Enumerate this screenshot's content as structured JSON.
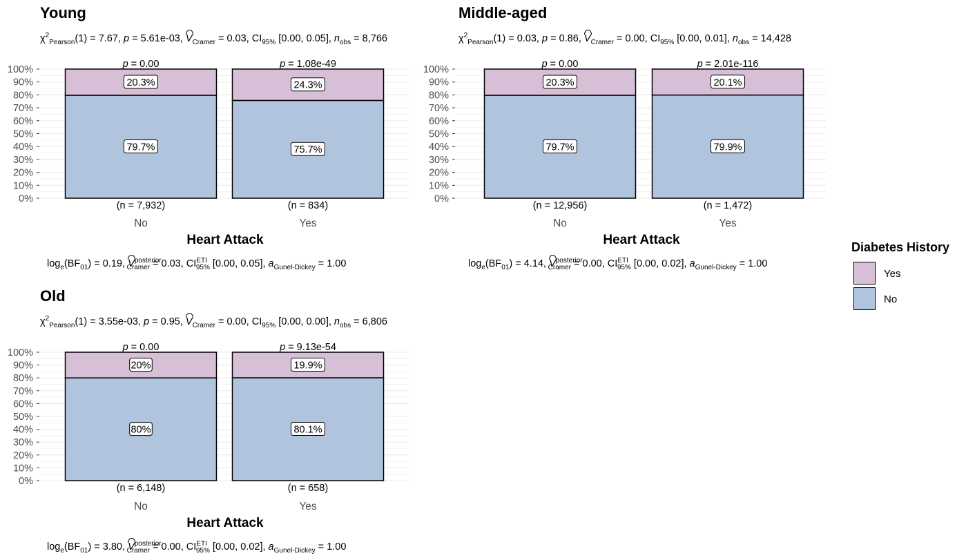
{
  "colors": {
    "yes": "#D8BFD8",
    "no": "#B0C4DE",
    "grid": "#EBEBEB",
    "axis_text": "#4D4D4D"
  },
  "legend": {
    "title": "Diabetes History",
    "items": [
      {
        "label": "Yes",
        "color": "#D8BFD8"
      },
      {
        "label": "No",
        "color": "#B0C4DE"
      }
    ]
  },
  "chart_data": [
    {
      "type": "bar",
      "stacked": "percent",
      "title": "Young",
      "xlabel": "Heart Attack",
      "ylabel": "",
      "ylim": [
        0,
        100
      ],
      "yticks": [
        "0%",
        "10%",
        "20%",
        "30%",
        "40%",
        "50%",
        "60%",
        "70%",
        "80%",
        "90%",
        "100%"
      ],
      "categories": [
        "No",
        "Yes"
      ],
      "series": [
        {
          "name": "Yes",
          "values": [
            20.3,
            24.3
          ],
          "labels": [
            "20.3%",
            "24.3%"
          ]
        },
        {
          "name": "No",
          "values": [
            79.7,
            75.7
          ],
          "labels": [
            "79.7%",
            "75.7%"
          ]
        }
      ],
      "top_labels": [
        "p = 0.00",
        "p = 1.08e-49"
      ],
      "count_labels": [
        "(n = 7,932)",
        "(n = 834)"
      ],
      "subtitle": {
        "chi2": "7.67",
        "p": "5.61e-03",
        "v": "0.03",
        "ci": "[0.00, 0.05]",
        "nobs": "8,766"
      },
      "caption": {
        "bf": "0.19",
        "v": "0.03",
        "ci": "[0.00, 0.05]",
        "a": "1.00"
      }
    },
    {
      "type": "bar",
      "stacked": "percent",
      "title": "Middle-aged",
      "xlabel": "Heart Attack",
      "ylabel": "",
      "ylim": [
        0,
        100
      ],
      "yticks": [
        "0%",
        "10%",
        "20%",
        "30%",
        "40%",
        "50%",
        "60%",
        "70%",
        "80%",
        "90%",
        "100%"
      ],
      "categories": [
        "No",
        "Yes"
      ],
      "series": [
        {
          "name": "Yes",
          "values": [
            20.3,
            20.1
          ],
          "labels": [
            "20.3%",
            "20.1%"
          ]
        },
        {
          "name": "No",
          "values": [
            79.7,
            79.9
          ],
          "labels": [
            "79.7%",
            "79.9%"
          ]
        }
      ],
      "top_labels": [
        "p = 0.00",
        "p = 2.01e-116"
      ],
      "count_labels": [
        "(n = 12,956)",
        "(n = 1,472)"
      ],
      "subtitle": {
        "chi2": "0.03",
        "p": "0.86",
        "v": "0.00",
        "ci": "[0.00, 0.01]",
        "nobs": "14,428"
      },
      "caption": {
        "bf": "4.14",
        "v": "0.00",
        "ci": "[0.00, 0.02]",
        "a": "1.00"
      }
    },
    {
      "type": "bar",
      "stacked": "percent",
      "title": "Old",
      "xlabel": "Heart Attack",
      "ylabel": "",
      "ylim": [
        0,
        100
      ],
      "yticks": [
        "0%",
        "10%",
        "20%",
        "30%",
        "40%",
        "50%",
        "60%",
        "70%",
        "80%",
        "90%",
        "100%"
      ],
      "categories": [
        "No",
        "Yes"
      ],
      "series": [
        {
          "name": "Yes",
          "values": [
            20,
            19.9
          ],
          "labels": [
            "20%",
            "19.9%"
          ]
        },
        {
          "name": "No",
          "values": [
            80,
            80.1
          ],
          "labels": [
            "80%",
            "80.1%"
          ]
        }
      ],
      "top_labels": [
        "p = 0.00",
        "p = 9.13e-54"
      ],
      "count_labels": [
        "(n = 6,148)",
        "(n = 658)"
      ],
      "subtitle": {
        "chi2": "3.55e-03",
        "p": "0.95",
        "v": "0.00",
        "ci": "[0.00, 0.00]",
        "nobs": "6,806"
      },
      "caption": {
        "bf": "3.80",
        "v": "0.00",
        "ci": "[0.00, 0.02]",
        "a": "1.00"
      }
    }
  ]
}
